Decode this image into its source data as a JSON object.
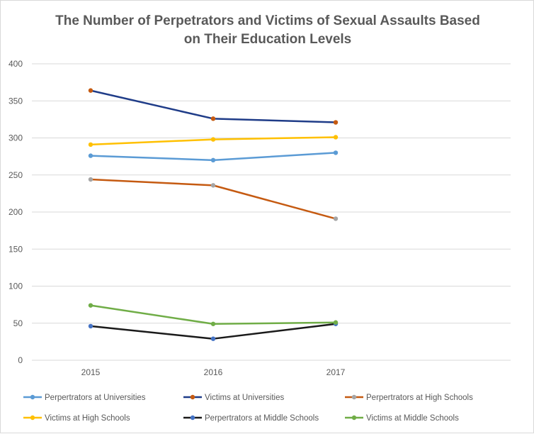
{
  "chart_data": {
    "type": "line",
    "title": "The Number of Perpetrators and Victims of Sexual Assaults Based\non Their Education Levels",
    "categories": [
      "2015",
      "2016",
      "2017"
    ],
    "ylim": [
      0,
      400
    ],
    "yticks": [
      0,
      50,
      100,
      150,
      200,
      250,
      300,
      350,
      400
    ],
    "grid": true,
    "legend_position": "bottom",
    "series": [
      {
        "name": "Perpertrators at Universities",
        "values": [
          276,
          270,
          280
        ],
        "line_color": "#5b9bd5",
        "marker_color": "#5b9bd5"
      },
      {
        "name": "Victims at Universities",
        "values": [
          364,
          326,
          321
        ],
        "line_color": "#1f3c88",
        "marker_color": "#c55a11"
      },
      {
        "name": "Perpertrators  at High Schools",
        "values": [
          244,
          236,
          191
        ],
        "line_color": "#c55a11",
        "marker_color": "#a5a5a5"
      },
      {
        "name": "Victims at High Schools",
        "values": [
          291,
          298,
          301
        ],
        "line_color": "#ffc000",
        "marker_color": "#ffc000"
      },
      {
        "name": "Perpertrators  at Middle Schools",
        "values": [
          46,
          29,
          49
        ],
        "line_color": "#1a1a1a",
        "marker_color": "#4472c4"
      },
      {
        "name": "Victims at Middle Schools",
        "values": [
          74,
          49,
          51
        ],
        "line_color": "#70ad47",
        "marker_color": "#70ad47"
      }
    ]
  }
}
